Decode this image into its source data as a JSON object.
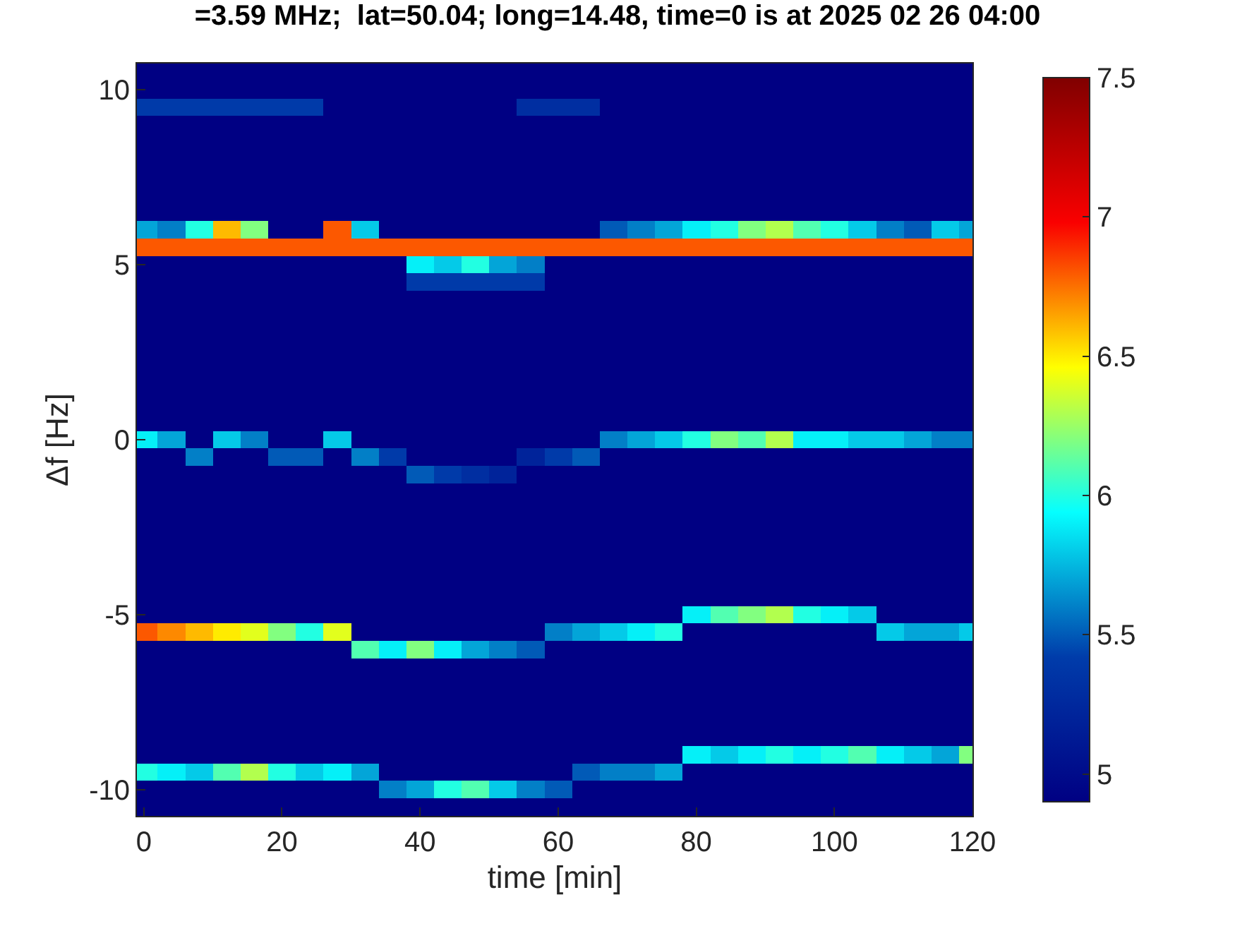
{
  "chart_data": {
    "type": "heatmap",
    "title": "=3.59 MHz;  lat=50.04; long=14.48, time=0 is at 2025 02 26 04:00",
    "xlabel": "time [min]",
    "ylabel": "Δf [Hz]",
    "x": [
      0,
      4,
      8,
      12,
      16,
      20,
      24,
      28,
      32,
      36,
      40,
      44,
      48,
      52,
      56,
      60,
      64,
      68,
      72,
      76,
      80,
      84,
      88,
      92,
      96,
      100,
      104,
      108,
      112,
      116,
      120
    ],
    "y": [
      10.5,
      10.0,
      9.5,
      9.0,
      8.5,
      8.0,
      7.5,
      7.0,
      6.5,
      6.0,
      5.5,
      5.0,
      4.5,
      4.0,
      3.5,
      3.0,
      2.5,
      2.0,
      1.5,
      1.0,
      0.5,
      0.0,
      -0.5,
      -1.0,
      -1.5,
      -2.0,
      -2.5,
      -3.0,
      -3.5,
      -4.0,
      -4.5,
      -5.0,
      -5.5,
      -6.0,
      -6.5,
      -7.0,
      -7.5,
      -8.0,
      -8.5,
      -9.0,
      -9.5,
      -10.0,
      -10.5
    ],
    "xlim": [
      -1,
      120
    ],
    "ylim": [
      -10.75,
      10.75
    ],
    "xticks": [
      0,
      20,
      40,
      60,
      80,
      100,
      120
    ],
    "yticks": [
      -10,
      -5,
      0,
      5,
      10
    ],
    "clim": [
      4.9,
      7.5
    ],
    "cticks": [
      5,
      5.5,
      6,
      6.5,
      7,
      7.5
    ],
    "cells": [
      [
        4.9,
        4.9,
        4.9,
        4.9,
        4.9,
        4.9,
        4.9,
        4.9,
        4.9,
        4.9,
        4.9,
        4.9,
        4.9,
        4.9,
        4.9,
        4.9,
        4.9,
        4.9,
        4.9,
        4.9,
        4.9,
        4.9,
        4.9,
        4.9,
        4.9,
        4.9,
        4.9,
        4.9,
        4.9,
        4.9,
        4.9
      ],
      [
        4.9,
        4.9,
        4.9,
        4.9,
        4.9,
        4.9,
        4.9,
        4.9,
        4.9,
        4.9,
        4.9,
        4.9,
        4.9,
        4.9,
        4.9,
        4.9,
        4.9,
        4.9,
        4.9,
        4.9,
        4.9,
        4.9,
        4.9,
        4.9,
        4.9,
        4.9,
        4.9,
        4.9,
        4.9,
        4.9,
        4.9
      ],
      [
        5.4,
        5.4,
        5.4,
        5.4,
        5.4,
        5.4,
        5.4,
        4.9,
        4.9,
        4.9,
        4.9,
        4.9,
        4.9,
        4.9,
        5.3,
        5.3,
        5.3,
        4.9,
        4.9,
        4.9,
        4.9,
        4.9,
        4.9,
        4.9,
        4.9,
        4.9,
        4.9,
        4.9,
        4.9,
        4.9,
        4.9
      ],
      [
        4.9,
        4.9,
        4.9,
        4.9,
        4.9,
        4.9,
        4.9,
        4.9,
        4.9,
        4.9,
        4.9,
        4.9,
        4.9,
        4.9,
        4.9,
        4.9,
        4.9,
        4.9,
        4.9,
        4.9,
        4.9,
        4.9,
        4.9,
        4.9,
        4.9,
        4.9,
        4.9,
        4.9,
        4.9,
        4.9,
        4.9
      ],
      [
        4.9,
        4.9,
        4.9,
        4.9,
        4.9,
        4.9,
        4.9,
        4.9,
        4.9,
        4.9,
        4.9,
        4.9,
        4.9,
        4.9,
        4.9,
        4.9,
        4.9,
        4.9,
        4.9,
        4.9,
        4.9,
        4.9,
        4.9,
        4.9,
        4.9,
        4.9,
        4.9,
        4.9,
        4.9,
        4.9,
        4.9
      ],
      [
        4.9,
        4.9,
        4.9,
        4.9,
        4.9,
        4.9,
        4.9,
        4.9,
        4.9,
        4.9,
        4.9,
        4.9,
        4.9,
        4.9,
        4.9,
        4.9,
        4.9,
        4.9,
        4.9,
        4.9,
        4.9,
        4.9,
        4.9,
        4.9,
        4.9,
        4.9,
        4.9,
        4.9,
        4.9,
        4.9,
        4.9
      ],
      [
        4.9,
        4.9,
        4.9,
        4.9,
        4.9,
        4.9,
        4.9,
        4.9,
        4.9,
        4.9,
        4.9,
        4.9,
        4.9,
        4.9,
        4.9,
        4.9,
        4.9,
        4.9,
        4.9,
        4.9,
        4.9,
        4.9,
        4.9,
        4.9,
        4.9,
        4.9,
        4.9,
        4.9,
        4.9,
        4.9,
        4.9
      ],
      [
        4.9,
        4.9,
        4.9,
        4.9,
        4.9,
        4.9,
        4.9,
        4.9,
        4.9,
        4.9,
        4.9,
        4.9,
        4.9,
        4.9,
        4.9,
        4.9,
        4.9,
        4.9,
        4.9,
        4.9,
        4.9,
        4.9,
        4.9,
        4.9,
        4.9,
        4.9,
        4.9,
        4.9,
        4.9,
        4.9,
        4.9
      ],
      [
        4.9,
        4.9,
        4.9,
        4.9,
        4.9,
        4.9,
        4.9,
        4.9,
        4.9,
        4.9,
        4.9,
        4.9,
        4.9,
        4.9,
        4.9,
        4.9,
        4.9,
        4.9,
        4.9,
        4.9,
        4.9,
        4.9,
        4.9,
        4.9,
        4.9,
        4.9,
        4.9,
        4.9,
        4.9,
        4.9,
        4.9
      ],
      [
        5.7,
        5.6,
        6.0,
        6.6,
        6.2,
        4.9,
        4.9,
        6.8,
        5.8,
        4.9,
        4.9,
        4.9,
        4.9,
        4.9,
        4.9,
        4.9,
        4.9,
        5.5,
        5.6,
        5.7,
        5.9,
        6.0,
        6.2,
        6.3,
        6.1,
        6.0,
        5.8,
        5.6,
        5.5,
        5.8,
        5.7
      ],
      [
        6.8,
        6.8,
        6.8,
        6.8,
        6.8,
        6.8,
        6.8,
        6.8,
        6.8,
        6.8,
        6.8,
        6.8,
        6.8,
        6.8,
        6.8,
        6.8,
        6.8,
        6.8,
        6.8,
        6.8,
        6.8,
        6.8,
        6.8,
        6.8,
        6.8,
        6.8,
        6.8,
        6.8,
        6.8,
        6.8,
        6.8
      ],
      [
        4.9,
        4.9,
        4.9,
        4.9,
        4.9,
        4.9,
        4.9,
        4.9,
        4.9,
        4.9,
        5.9,
        5.8,
        6.0,
        5.7,
        5.6,
        4.9,
        4.9,
        4.9,
        4.9,
        4.9,
        4.9,
        4.9,
        4.9,
        4.9,
        4.9,
        4.9,
        4.9,
        4.9,
        4.9,
        4.9,
        4.9
      ],
      [
        4.9,
        4.9,
        4.9,
        4.9,
        4.9,
        4.9,
        4.9,
        4.9,
        4.9,
        4.9,
        5.4,
        5.4,
        5.4,
        5.4,
        5.4,
        4.9,
        4.9,
        4.9,
        4.9,
        4.9,
        4.9,
        4.9,
        4.9,
        4.9,
        4.9,
        4.9,
        4.9,
        4.9,
        4.9,
        4.9,
        4.9
      ],
      [
        4.9,
        4.9,
        4.9,
        4.9,
        4.9,
        4.9,
        4.9,
        4.9,
        4.9,
        4.9,
        4.9,
        4.9,
        4.9,
        4.9,
        4.9,
        4.9,
        4.9,
        4.9,
        4.9,
        4.9,
        4.9,
        4.9,
        4.9,
        4.9,
        4.9,
        4.9,
        4.9,
        4.9,
        4.9,
        4.9,
        4.9
      ],
      [
        4.9,
        4.9,
        4.9,
        4.9,
        4.9,
        4.9,
        4.9,
        4.9,
        4.9,
        4.9,
        4.9,
        4.9,
        4.9,
        4.9,
        4.9,
        4.9,
        4.9,
        4.9,
        4.9,
        4.9,
        4.9,
        4.9,
        4.9,
        4.9,
        4.9,
        4.9,
        4.9,
        4.9,
        4.9,
        4.9,
        4.9
      ],
      [
        4.9,
        4.9,
        4.9,
        4.9,
        4.9,
        4.9,
        4.9,
        4.9,
        4.9,
        4.9,
        4.9,
        4.9,
        4.9,
        4.9,
        4.9,
        4.9,
        4.9,
        4.9,
        4.9,
        4.9,
        4.9,
        4.9,
        4.9,
        4.9,
        4.9,
        4.9,
        4.9,
        4.9,
        4.9,
        4.9,
        4.9
      ],
      [
        4.9,
        4.9,
        4.9,
        4.9,
        4.9,
        4.9,
        4.9,
        4.9,
        4.9,
        4.9,
        4.9,
        4.9,
        4.9,
        4.9,
        4.9,
        4.9,
        4.9,
        4.9,
        4.9,
        4.9,
        4.9,
        4.9,
        4.9,
        4.9,
        4.9,
        4.9,
        4.9,
        4.9,
        4.9,
        4.9,
        4.9
      ],
      [
        4.9,
        4.9,
        4.9,
        4.9,
        4.9,
        4.9,
        4.9,
        4.9,
        4.9,
        4.9,
        4.9,
        4.9,
        4.9,
        4.9,
        4.9,
        4.9,
        4.9,
        4.9,
        4.9,
        4.9,
        4.9,
        4.9,
        4.9,
        4.9,
        4.9,
        4.9,
        4.9,
        4.9,
        4.9,
        4.9,
        4.9
      ],
      [
        4.9,
        4.9,
        4.9,
        4.9,
        4.9,
        4.9,
        4.9,
        4.9,
        4.9,
        4.9,
        4.9,
        4.9,
        4.9,
        4.9,
        4.9,
        4.9,
        4.9,
        4.9,
        4.9,
        4.9,
        4.9,
        4.9,
        4.9,
        4.9,
        4.9,
        4.9,
        4.9,
        4.9,
        4.9,
        4.9,
        4.9
      ],
      [
        4.9,
        4.9,
        4.9,
        4.9,
        4.9,
        4.9,
        4.9,
        4.9,
        4.9,
        4.9,
        4.9,
        4.9,
        4.9,
        4.9,
        4.9,
        4.9,
        4.9,
        4.9,
        4.9,
        4.9,
        4.9,
        4.9,
        4.9,
        4.9,
        4.9,
        4.9,
        4.9,
        4.9,
        4.9,
        4.9,
        4.9
      ],
      [
        4.9,
        4.9,
        4.9,
        4.9,
        4.9,
        4.9,
        4.9,
        4.9,
        4.9,
        4.9,
        4.9,
        4.9,
        4.9,
        4.9,
        4.9,
        4.9,
        4.9,
        4.9,
        4.9,
        4.9,
        4.9,
        4.9,
        4.9,
        4.9,
        4.9,
        4.9,
        4.9,
        4.9,
        4.9,
        4.9,
        4.9
      ],
      [
        5.9,
        5.7,
        4.9,
        5.8,
        5.6,
        4.9,
        4.9,
        5.8,
        4.9,
        4.9,
        4.9,
        4.9,
        4.9,
        4.9,
        4.9,
        4.9,
        4.9,
        5.6,
        5.7,
        5.8,
        6.0,
        6.2,
        6.1,
        6.3,
        5.9,
        5.9,
        5.8,
        5.8,
        5.7,
        5.6,
        5.6
      ],
      [
        4.9,
        4.9,
        5.6,
        4.9,
        4.9,
        5.5,
        5.5,
        4.9,
        5.6,
        5.4,
        4.9,
        4.9,
        4.9,
        4.9,
        5.2,
        5.4,
        5.5,
        4.9,
        4.9,
        4.9,
        4.9,
        4.9,
        4.9,
        4.9,
        4.9,
        4.9,
        4.9,
        4.9,
        4.9,
        4.9,
        4.9
      ],
      [
        4.9,
        4.9,
        4.9,
        4.9,
        4.9,
        4.9,
        4.9,
        4.9,
        4.9,
        4.9,
        5.5,
        5.4,
        5.3,
        5.2,
        4.9,
        4.9,
        4.9,
        4.9,
        4.9,
        4.9,
        4.9,
        4.9,
        4.9,
        4.9,
        4.9,
        4.9,
        4.9,
        4.9,
        4.9,
        4.9,
        4.9
      ],
      [
        4.9,
        4.9,
        4.9,
        4.9,
        4.9,
        4.9,
        4.9,
        4.9,
        4.9,
        4.9,
        4.9,
        4.9,
        4.9,
        4.9,
        4.9,
        4.9,
        4.9,
        4.9,
        4.9,
        4.9,
        4.9,
        4.9,
        4.9,
        4.9,
        4.9,
        4.9,
        4.9,
        4.9,
        4.9,
        4.9,
        4.9
      ],
      [
        4.9,
        4.9,
        4.9,
        4.9,
        4.9,
        4.9,
        4.9,
        4.9,
        4.9,
        4.9,
        4.9,
        4.9,
        4.9,
        4.9,
        4.9,
        4.9,
        4.9,
        4.9,
        4.9,
        4.9,
        4.9,
        4.9,
        4.9,
        4.9,
        4.9,
        4.9,
        4.9,
        4.9,
        4.9,
        4.9,
        4.9
      ],
      [
        4.9,
        4.9,
        4.9,
        4.9,
        4.9,
        4.9,
        4.9,
        4.9,
        4.9,
        4.9,
        4.9,
        4.9,
        4.9,
        4.9,
        4.9,
        4.9,
        4.9,
        4.9,
        4.9,
        4.9,
        4.9,
        4.9,
        4.9,
        4.9,
        4.9,
        4.9,
        4.9,
        4.9,
        4.9,
        4.9,
        4.9
      ],
      [
        4.9,
        4.9,
        4.9,
        4.9,
        4.9,
        4.9,
        4.9,
        4.9,
        4.9,
        4.9,
        4.9,
        4.9,
        4.9,
        4.9,
        4.9,
        4.9,
        4.9,
        4.9,
        4.9,
        4.9,
        4.9,
        4.9,
        4.9,
        4.9,
        4.9,
        4.9,
        4.9,
        4.9,
        4.9,
        4.9,
        4.9
      ],
      [
        4.9,
        4.9,
        4.9,
        4.9,
        4.9,
        4.9,
        4.9,
        4.9,
        4.9,
        4.9,
        4.9,
        4.9,
        4.9,
        4.9,
        4.9,
        4.9,
        4.9,
        4.9,
        4.9,
        4.9,
        4.9,
        4.9,
        4.9,
        4.9,
        4.9,
        4.9,
        4.9,
        4.9,
        4.9,
        4.9,
        4.9
      ],
      [
        4.9,
        4.9,
        4.9,
        4.9,
        4.9,
        4.9,
        4.9,
        4.9,
        4.9,
        4.9,
        4.9,
        4.9,
        4.9,
        4.9,
        4.9,
        4.9,
        4.9,
        4.9,
        4.9,
        4.9,
        4.9,
        4.9,
        4.9,
        4.9,
        4.9,
        4.9,
        4.9,
        4.9,
        4.9,
        4.9,
        4.9
      ],
      [
        4.9,
        4.9,
        4.9,
        4.9,
        4.9,
        4.9,
        4.9,
        4.9,
        4.9,
        4.9,
        4.9,
        4.9,
        4.9,
        4.9,
        4.9,
        4.9,
        4.9,
        4.9,
        4.9,
        4.9,
        4.9,
        4.9,
        4.9,
        4.9,
        4.9,
        4.9,
        4.9,
        4.9,
        4.9,
        4.9,
        4.9
      ],
      [
        4.9,
        4.9,
        4.9,
        4.9,
        4.9,
        4.9,
        4.9,
        4.9,
        4.9,
        4.9,
        4.9,
        4.9,
        4.9,
        4.9,
        4.9,
        4.9,
        4.9,
        4.9,
        4.9,
        4.9,
        5.9,
        6.1,
        6.2,
        6.3,
        6.0,
        5.9,
        5.8,
        4.9,
        4.9,
        4.9,
        4.9
      ],
      [
        6.8,
        6.7,
        6.6,
        6.5,
        6.4,
        6.2,
        6.0,
        6.4,
        4.9,
        4.9,
        4.9,
        4.9,
        4.9,
        4.9,
        4.9,
        5.6,
        5.7,
        5.8,
        5.9,
        6.0,
        4.9,
        4.9,
        4.9,
        4.9,
        4.9,
        4.9,
        4.9,
        5.8,
        5.7,
        5.7,
        5.8
      ],
      [
        4.9,
        4.9,
        4.9,
        4.9,
        4.9,
        4.9,
        4.9,
        4.9,
        6.1,
        5.9,
        6.2,
        5.9,
        5.7,
        5.6,
        5.5,
        4.9,
        4.9,
        4.9,
        4.9,
        4.9,
        4.9,
        4.9,
        4.9,
        4.9,
        4.9,
        4.9,
        4.9,
        4.9,
        4.9,
        4.9,
        4.9
      ],
      [
        4.9,
        4.9,
        4.9,
        4.9,
        4.9,
        4.9,
        4.9,
        4.9,
        4.9,
        4.9,
        4.9,
        4.9,
        4.9,
        4.9,
        4.9,
        4.9,
        4.9,
        4.9,
        4.9,
        4.9,
        4.9,
        4.9,
        4.9,
        4.9,
        4.9,
        4.9,
        4.9,
        4.9,
        4.9,
        4.9,
        4.9
      ],
      [
        4.9,
        4.9,
        4.9,
        4.9,
        4.9,
        4.9,
        4.9,
        4.9,
        4.9,
        4.9,
        4.9,
        4.9,
        4.9,
        4.9,
        4.9,
        4.9,
        4.9,
        4.9,
        4.9,
        4.9,
        4.9,
        4.9,
        4.9,
        4.9,
        4.9,
        4.9,
        4.9,
        4.9,
        4.9,
        4.9,
        4.9
      ],
      [
        4.9,
        4.9,
        4.9,
        4.9,
        4.9,
        4.9,
        4.9,
        4.9,
        4.9,
        4.9,
        4.9,
        4.9,
        4.9,
        4.9,
        4.9,
        4.9,
        4.9,
        4.9,
        4.9,
        4.9,
        4.9,
        4.9,
        4.9,
        4.9,
        4.9,
        4.9,
        4.9,
        4.9,
        4.9,
        4.9,
        4.9
      ],
      [
        4.9,
        4.9,
        4.9,
        4.9,
        4.9,
        4.9,
        4.9,
        4.9,
        4.9,
        4.9,
        4.9,
        4.9,
        4.9,
        4.9,
        4.9,
        4.9,
        4.9,
        4.9,
        4.9,
        4.9,
        4.9,
        4.9,
        4.9,
        4.9,
        4.9,
        4.9,
        4.9,
        4.9,
        4.9,
        4.9,
        4.9
      ],
      [
        4.9,
        4.9,
        4.9,
        4.9,
        4.9,
        4.9,
        4.9,
        4.9,
        4.9,
        4.9,
        4.9,
        4.9,
        4.9,
        4.9,
        4.9,
        4.9,
        4.9,
        4.9,
        4.9,
        4.9,
        4.9,
        4.9,
        4.9,
        4.9,
        4.9,
        4.9,
        4.9,
        4.9,
        4.9,
        4.9,
        4.9
      ],
      [
        4.9,
        4.9,
        4.9,
        4.9,
        4.9,
        4.9,
        4.9,
        4.9,
        4.9,
        4.9,
        4.9,
        4.9,
        4.9,
        4.9,
        4.9,
        4.9,
        4.9,
        4.9,
        4.9,
        4.9,
        5.9,
        5.8,
        5.9,
        6.0,
        5.9,
        6.0,
        6.1,
        5.9,
        5.8,
        5.7,
        6.2
      ],
      [
        6.0,
        5.9,
        5.8,
        6.1,
        6.3,
        6.0,
        5.8,
        5.9,
        5.7,
        4.9,
        4.9,
        4.9,
        4.9,
        4.9,
        4.9,
        4.9,
        5.5,
        5.6,
        5.6,
        5.7,
        4.9,
        4.9,
        4.9,
        4.9,
        4.9,
        4.9,
        4.9,
        4.9,
        4.9,
        4.9,
        4.9
      ],
      [
        4.9,
        4.9,
        4.9,
        4.9,
        4.9,
        4.9,
        4.9,
        4.9,
        4.9,
        5.6,
        5.7,
        6.0,
        6.1,
        5.8,
        5.6,
        5.5,
        4.9,
        4.9,
        4.9,
        4.9,
        4.9,
        4.9,
        4.9,
        4.9,
        4.9,
        4.9,
        4.9,
        4.9,
        4.9,
        4.9,
        4.9
      ],
      [
        4.9,
        4.9,
        4.9,
        4.9,
        4.9,
        4.9,
        4.9,
        4.9,
        4.9,
        4.9,
        4.9,
        4.9,
        4.9,
        4.9,
        4.9,
        4.9,
        4.9,
        4.9,
        4.9,
        4.9,
        4.9,
        4.9,
        4.9,
        4.9,
        4.9,
        4.9,
        4.9,
        4.9,
        4.9,
        4.9,
        4.9
      ]
    ]
  }
}
